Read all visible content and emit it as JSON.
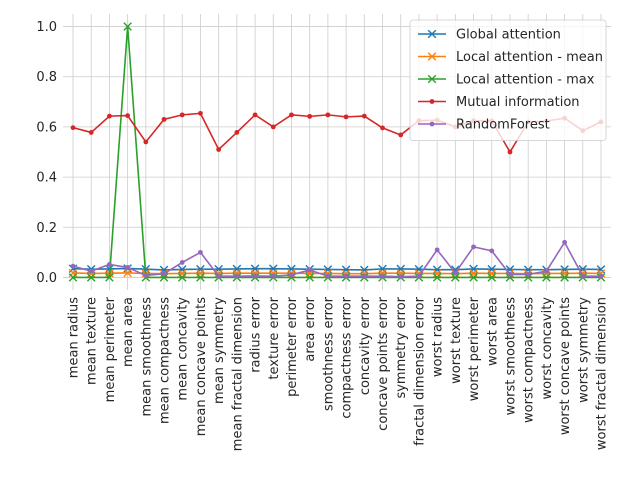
{
  "chart_data": {
    "type": "line",
    "title": "",
    "xlabel": "",
    "ylabel": "",
    "ylim": [
      -0.05,
      1.05
    ],
    "yticks": [
      0.0,
      0.2,
      0.4,
      0.6,
      0.8,
      1.0
    ],
    "ytick_labels": [
      "0.0",
      "0.2",
      "0.4",
      "0.6",
      "0.8",
      "1.0"
    ],
    "grid": true,
    "legend_position": "top-right",
    "categories": [
      "mean radius",
      "mean texture",
      "mean perimeter",
      "mean area",
      "mean smoothness",
      "mean compactness",
      "mean concavity",
      "mean concave points",
      "mean symmetry",
      "mean fractal dimension",
      "radius error",
      "texture error",
      "perimeter error",
      "area error",
      "smoothness error",
      "compactness error",
      "concavity error",
      "concave points error",
      "symmetry error",
      "fractal dimension error",
      "worst radius",
      "worst texture",
      "worst perimeter",
      "worst area",
      "worst smoothness",
      "worst compactness",
      "worst concavity",
      "worst concave points",
      "worst symmetry",
      "worst fractal dimension"
    ],
    "series": [
      {
        "name": "Global attention",
        "color": "#1f77b4",
        "marker": "x",
        "values": [
          0.035,
          0.033,
          0.034,
          0.036,
          0.033,
          0.03,
          0.032,
          0.033,
          0.033,
          0.034,
          0.035,
          0.035,
          0.034,
          0.033,
          0.032,
          0.031,
          0.03,
          0.034,
          0.034,
          0.033,
          0.031,
          0.031,
          0.034,
          0.033,
          0.032,
          0.031,
          0.031,
          0.032,
          0.033,
          0.032
        ]
      },
      {
        "name": "Local attention - mean",
        "color": "#ff7f0e",
        "marker": "x",
        "values": [
          0.018,
          0.016,
          0.017,
          0.018,
          0.016,
          0.015,
          0.016,
          0.017,
          0.016,
          0.017,
          0.017,
          0.017,
          0.017,
          0.016,
          0.016,
          0.015,
          0.015,
          0.017,
          0.017,
          0.016,
          0.016,
          0.015,
          0.017,
          0.016,
          0.016,
          0.015,
          0.016,
          0.016,
          0.017,
          0.016
        ]
      },
      {
        "name": "Local attention - max",
        "color": "#2ca02c",
        "marker": "x",
        "values": [
          0.0,
          0.0,
          0.0,
          1.0,
          0.0,
          0.0,
          0.0,
          0.0,
          0.0,
          0.0,
          0.0,
          0.0,
          0.0,
          0.0,
          0.0,
          0.0,
          0.0,
          0.0,
          0.0,
          0.0,
          0.0,
          0.0,
          0.0,
          0.0,
          0.0,
          0.0,
          0.0,
          0.0,
          0.0,
          0.0
        ]
      },
      {
        "name": "Mutual information",
        "color": "#d62728",
        "marker": "dot",
        "values": [
          0.597,
          0.578,
          0.643,
          0.645,
          0.54,
          0.63,
          0.648,
          0.654,
          0.51,
          0.578,
          0.648,
          0.6,
          0.648,
          0.642,
          0.648,
          0.64,
          0.643,
          0.596,
          0.568,
          0.625,
          0.627,
          0.6,
          0.625,
          0.624,
          0.5,
          0.62,
          0.623,
          0.635,
          0.585,
          0.62
        ]
      },
      {
        "name": "RandomForest",
        "color": "#9467bd",
        "marker": "dot",
        "values": [
          0.045,
          0.025,
          0.052,
          0.04,
          0.008,
          0.015,
          0.06,
          0.1,
          0.005,
          0.005,
          0.006,
          0.005,
          0.01,
          0.03,
          0.005,
          0.005,
          0.005,
          0.005,
          0.003,
          0.005,
          0.11,
          0.018,
          0.122,
          0.106,
          0.012,
          0.012,
          0.025,
          0.14,
          0.005,
          0.005
        ]
      }
    ]
  }
}
